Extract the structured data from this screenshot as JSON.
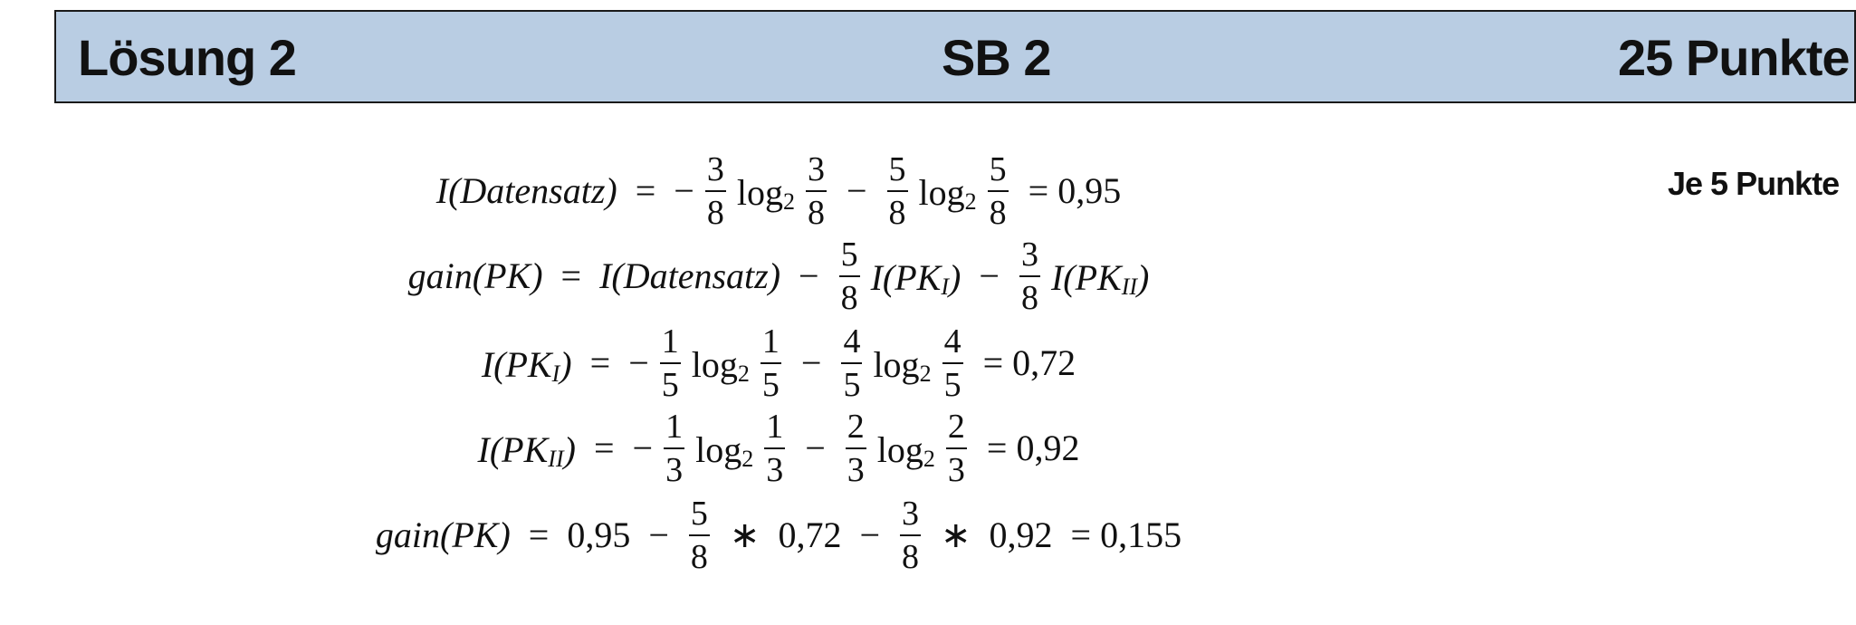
{
  "header": {
    "left": "Lösung 2",
    "center": "SB 2",
    "right": "25 Punkte"
  },
  "points_note": "Je 5 Punkte",
  "formulas": {
    "f1": {
      "lhs": "I(Datensatz)",
      "eq": "=",
      "minus1": "−",
      "n1": "3",
      "d1": "8",
      "log": "log",
      "base": "2",
      "n2": "3",
      "d2": "8",
      "minus2": "−",
      "n3": "5",
      "d3": "8",
      "n4": "5",
      "d4": "8",
      "result": "= 0,95"
    },
    "f2": {
      "lhs": "gain(PK)",
      "eq": "=",
      "t1": "I(Datensatz)",
      "minus": "−",
      "n1": "5",
      "d1": "8",
      "t2a": "I(PK",
      "sub2": "I",
      "t2b": ")",
      "n2": "3",
      "d2": "8",
      "t3a": "I(PK",
      "sub3": "II",
      "t3b": ")"
    },
    "f3": {
      "lhsa": "I(PK",
      "lhssub": "I",
      "lhsb": ")",
      "eq": "=",
      "minus": "−",
      "n1": "1",
      "d1": "5",
      "log": "log",
      "base": "2",
      "n2": "1",
      "d2": "5",
      "n3": "4",
      "d3": "5",
      "n4": "4",
      "d4": "5",
      "result": "= 0,72"
    },
    "f4": {
      "lhsa": "I(PK",
      "lhssub": "II",
      "lhsb": ")",
      "eq": "=",
      "minus": "−",
      "n1": "1",
      "d1": "3",
      "log": "log",
      "base": "2",
      "n2": "1",
      "d2": "3",
      "n3": "2",
      "d3": "3",
      "n4": "2",
      "d4": "3",
      "result": "= 0,92"
    },
    "f5": {
      "lhs": "gain(PK)",
      "eq": "=",
      "v1": "0,95",
      "minus": "−",
      "n1": "5",
      "d1": "8",
      "times": "∗",
      "v2": "0,72",
      "n2": "3",
      "d2": "8",
      "v3": "0,92",
      "result": "= 0,155"
    }
  }
}
